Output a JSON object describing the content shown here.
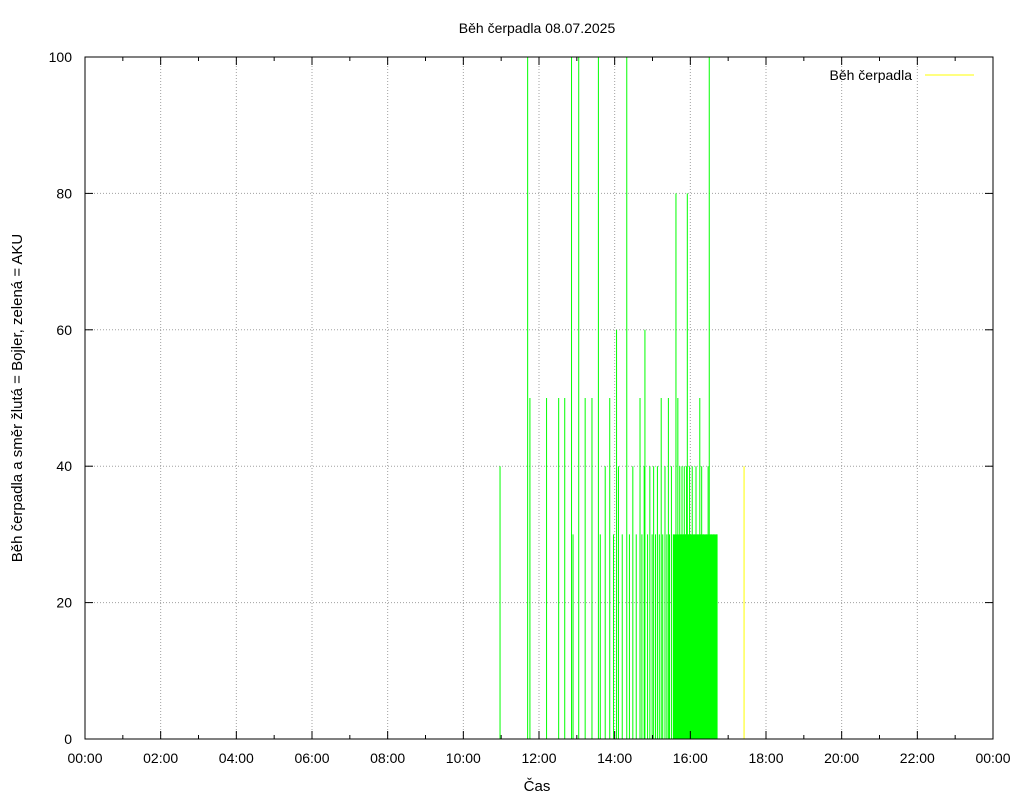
{
  "chart_data": {
    "type": "line",
    "title": "Běh čerpadla 08.07.2025",
    "xlabel": "Čas",
    "ylabel": "Běh čerpadla a směr žlutá = Bojler, zelená = AKU",
    "xlim": [
      0,
      24
    ],
    "ylim": [
      0,
      100
    ],
    "x_ticks": [
      0,
      2,
      4,
      6,
      8,
      10,
      12,
      14,
      16,
      18,
      20,
      22,
      24
    ],
    "x_tick_labels": [
      "00:00",
      "02:00",
      "04:00",
      "06:00",
      "08:00",
      "10:00",
      "12:00",
      "14:00",
      "16:00",
      "18:00",
      "20:00",
      "22:00",
      "00:00"
    ],
    "y_ticks": [
      0,
      20,
      40,
      60,
      80,
      100
    ],
    "y_tick_labels": [
      "0",
      "20",
      "40",
      "60",
      "80",
      "100"
    ],
    "grid": true,
    "legend": {
      "position": "top-right",
      "entries": [
        {
          "label": "Běh čerpadla",
          "color": "#ffff00"
        }
      ]
    },
    "series": [
      {
        "name": "Běh čerpadla",
        "color": "#00ff00",
        "style": "impulses",
        "x": [
          10.97,
          11.7,
          11.76,
          12.2,
          12.52,
          12.68,
          12.86,
          12.9,
          13.05,
          13.22,
          13.4,
          13.57,
          13.62,
          13.75,
          13.87,
          13.97,
          14.05,
          14.1,
          14.2,
          14.32,
          14.39,
          14.48,
          14.57,
          14.67,
          14.72,
          14.78,
          14.8,
          14.87,
          14.93,
          14.99,
          15.03,
          15.08,
          15.13,
          15.18,
          15.23,
          15.27,
          15.33,
          15.38,
          15.42,
          15.45,
          15.5,
          15.55,
          15.62,
          15.67,
          15.72,
          15.75,
          15.78,
          15.82,
          15.84,
          15.87,
          15.9,
          15.92,
          15.95,
          15.98,
          16.0,
          16.05,
          16.1,
          16.15,
          16.2,
          16.25,
          16.28,
          16.3,
          16.35,
          16.42,
          16.47,
          16.5,
          16.55,
          16.62,
          16.7
        ],
        "values": [
          40,
          100,
          50,
          50,
          50,
          50,
          100,
          30,
          100,
          50,
          50,
          100,
          30,
          40,
          50,
          30,
          60,
          40,
          30,
          100,
          30,
          40,
          30,
          50,
          30,
          40,
          60,
          30,
          40,
          30,
          40,
          30,
          40,
          30,
          50,
          30,
          40,
          30,
          50,
          30,
          40,
          30,
          80,
          50,
          40,
          30,
          40,
          30,
          40,
          30,
          40,
          80,
          30,
          40,
          30,
          40,
          30,
          40,
          30,
          50,
          30,
          40,
          30,
          30,
          40,
          100,
          30,
          30,
          30
        ]
      },
      {
        "name": "Běh čerpadla",
        "color": "#ffff00",
        "style": "impulses",
        "x": [
          17.42
        ],
        "values": [
          40
        ]
      }
    ]
  }
}
